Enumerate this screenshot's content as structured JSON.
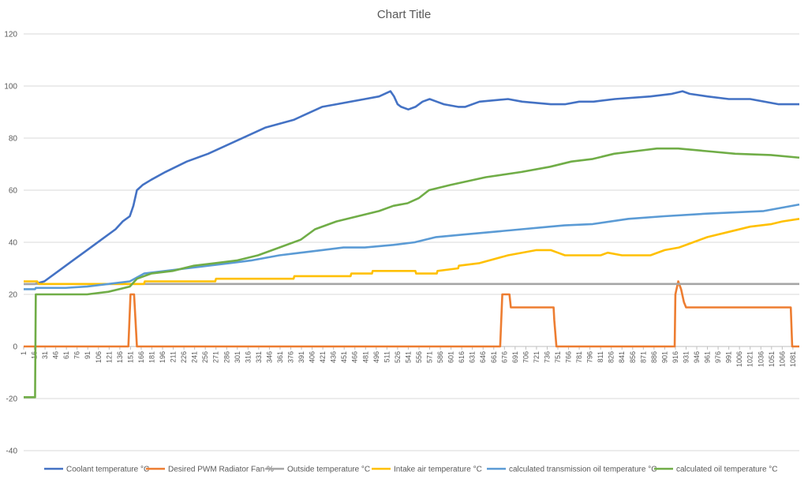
{
  "chart_data": {
    "type": "line",
    "title": "Chart Title",
    "xlabel": "",
    "ylabel": "",
    "x_range": [
      1,
      1090
    ],
    "ylim": [
      -40,
      120
    ],
    "yticks": [
      -40,
      -20,
      0,
      20,
      40,
      60,
      80,
      100,
      120
    ],
    "xtick_labels": [
      "1",
      "16",
      "31",
      "46",
      "61",
      "76",
      "91",
      "106",
      "121",
      "136",
      "151",
      "166",
      "181",
      "196",
      "211",
      "226",
      "241",
      "256",
      "271",
      "286",
      "301",
      "316",
      "331",
      "346",
      "361",
      "376",
      "391",
      "406",
      "421",
      "436",
      "451",
      "466",
      "481",
      "496",
      "511",
      "526",
      "541",
      "556",
      "571",
      "586",
      "601",
      "616",
      "631",
      "646",
      "661",
      "676",
      "691",
      "706",
      "721",
      "736",
      "751",
      "766",
      "781",
      "796",
      "811",
      "826",
      "841",
      "856",
      "871",
      "886",
      "901",
      "916",
      "931",
      "946",
      "961",
      "976",
      "991",
      "1006",
      "1021",
      "1036",
      "1051",
      "1066",
      "1081"
    ],
    "grid": "horizontal",
    "legend_position": "bottom",
    "series": [
      {
        "name": "Coolant temperature °C",
        "color": "#4472C4",
        "x": [
          1,
          17,
          30,
          50,
          70,
          90,
          110,
          130,
          140,
          150,
          155,
          160,
          168,
          180,
          200,
          230,
          260,
          300,
          340,
          380,
          420,
          440,
          480,
          500,
          516,
          521,
          526,
          531,
          541,
          551,
          561,
          571,
          581,
          591,
          611,
          621,
          641,
          681,
          701,
          741,
          761,
          781,
          801,
          831,
          881,
          911,
          926,
          936,
          961,
          991,
          1021,
          1061,
          1090
        ],
        "y": [
          24,
          24,
          25,
          29,
          33,
          37,
          41,
          45,
          48,
          50,
          54,
          60,
          62,
          64,
          67,
          71,
          74,
          79,
          84,
          87,
          92,
          93,
          95,
          96,
          98,
          96,
          93,
          92,
          91,
          92,
          94,
          95,
          94,
          93,
          92,
          92,
          94,
          95,
          94,
          93,
          93,
          94,
          94,
          95,
          96,
          97,
          98,
          97,
          96,
          95,
          95,
          93,
          93
        ]
      },
      {
        "name": "Desired PWM Radiator Fan %",
        "color": "#ED7D31",
        "x": [
          1,
          148,
          151,
          156,
          158,
          160,
          163,
          670,
          673,
          683,
          685,
          745,
          746,
          749,
          915,
          916,
          920,
          924,
          928,
          931,
          1078,
          1080,
          1090
        ],
        "y": [
          0,
          0,
          20,
          20,
          10,
          0,
          0,
          0,
          20,
          20,
          15,
          15,
          10,
          0,
          0,
          20,
          25,
          22,
          17,
          15,
          15,
          0,
          0
        ]
      },
      {
        "name": "Outside temperature °C",
        "color": "#A5A5A5",
        "x": [
          1,
          1090
        ],
        "y": [
          24,
          24
        ]
      },
      {
        "name": "Intake air temperature °C",
        "color": "#FFC000",
        "x": [
          1,
          20,
          22,
          60,
          61,
          120,
          121,
          170,
          171,
          270,
          271,
          380,
          381,
          460,
          461,
          490,
          491,
          551,
          552,
          581,
          582,
          611,
          612,
          641,
          681,
          721,
          741,
          751,
          761,
          791,
          811,
          821,
          841,
          856,
          866,
          881,
          901,
          921,
          941,
          961,
          991,
          1021,
          1051,
          1066,
          1090
        ],
        "y": [
          25,
          25,
          24,
          24,
          24,
          24,
          24,
          24,
          25,
          25,
          26,
          26,
          27,
          27,
          28,
          28,
          29,
          29,
          28,
          28,
          29,
          30,
          31,
          32,
          35,
          37,
          37,
          36,
          35,
          35,
          35,
          36,
          35,
          35,
          35,
          35,
          37,
          38,
          40,
          42,
          44,
          46,
          47,
          48,
          49
        ]
      },
      {
        "name": "calculated transmission oil temperature °C",
        "color": "#5B9BD5",
        "x": [
          1,
          17,
          18,
          40,
          60,
          90,
          120,
          150,
          170,
          200,
          230,
          260,
          290,
          320,
          360,
          390,
          420,
          450,
          480,
          500,
          520,
          550,
          580,
          620,
          660,
          700,
          740,
          760,
          800,
          850,
          900,
          960,
          1000,
          1040,
          1090
        ],
        "y": [
          22,
          22,
          22.5,
          22.5,
          22.5,
          23,
          24,
          25,
          28,
          29,
          30,
          31,
          32,
          33,
          35,
          36,
          37,
          38,
          38,
          38.5,
          39,
          40,
          42,
          43,
          44,
          45,
          46,
          46.5,
          47,
          49,
          50,
          51,
          51.5,
          52,
          54.5
        ]
      },
      {
        "name": "calculated oil temperature °C",
        "color": "#70AD47",
        "x": [
          1,
          17,
          18,
          60,
          90,
          120,
          150,
          160,
          180,
          210,
          240,
          270,
          300,
          330,
          360,
          390,
          410,
          440,
          470,
          500,
          520,
          540,
          556,
          570,
          600,
          650,
          700,
          740,
          770,
          800,
          830,
          860,
          890,
          920,
          960,
          1000,
          1050,
          1090
        ],
        "y": [
          -19.5,
          -19.5,
          20,
          20,
          20,
          21,
          23,
          26,
          28,
          29,
          31,
          32,
          33,
          35,
          38,
          41,
          45,
          48,
          50,
          52,
          54,
          55,
          57,
          60,
          62,
          65,
          67,
          69,
          71,
          72,
          74,
          75,
          76,
          76,
          75,
          74,
          73.5,
          72.5
        ]
      }
    ]
  }
}
